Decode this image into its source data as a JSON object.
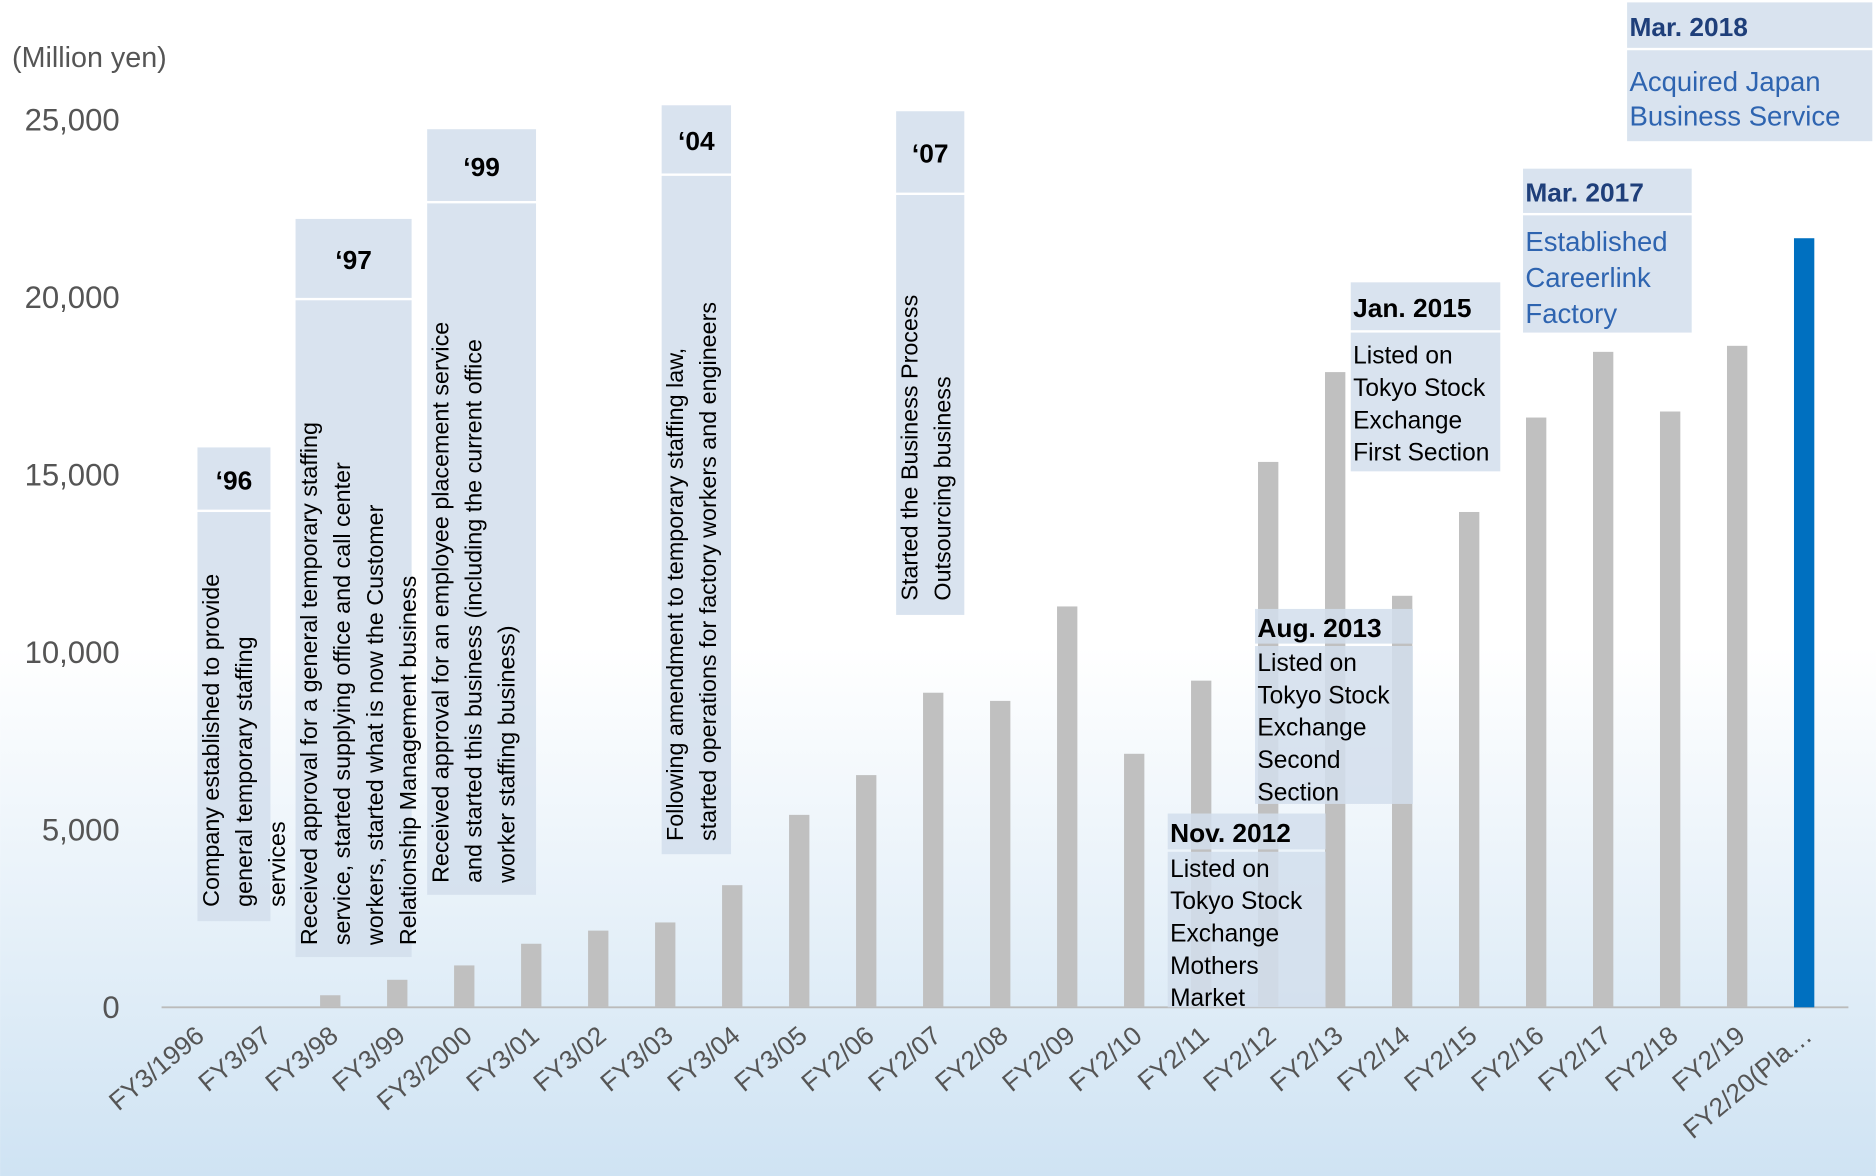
{
  "chart_data": {
    "type": "bar",
    "unit_label": "(Million yen)",
    "categories": [
      "FY3/1996",
      "FY3/97",
      "FY3/98",
      "FY3/99",
      "FY3/2000",
      "FY3/01",
      "FY3/02",
      "FY3/03",
      "FY3/04",
      "FY3/05",
      "FY2/06",
      "FY2/07",
      "FY2/08",
      "FY2/09",
      "FY2/10",
      "FY2/11",
      "FY2/12",
      "FY2/13",
      "FY2/14",
      "FY2/15",
      "FY2/16",
      "FY2/17",
      "FY2/18",
      "FY2/19",
      "FY2/20(Pla…"
    ],
    "values": [
      0,
      0,
      340,
      775,
      1180,
      1790,
      2160,
      2390,
      3440,
      5420,
      6540,
      8860,
      8630,
      11290,
      7140,
      9200,
      15360,
      17890,
      11590,
      13950,
      16610,
      18460,
      16780,
      18630,
      21660
    ],
    "colors": [
      "#c0c0c0",
      "#c0c0c0",
      "#c0c0c0",
      "#c0c0c0",
      "#c0c0c0",
      "#c0c0c0",
      "#c0c0c0",
      "#c0c0c0",
      "#c0c0c0",
      "#c0c0c0",
      "#c0c0c0",
      "#c0c0c0",
      "#c0c0c0",
      "#c0c0c0",
      "#c0c0c0",
      "#c0c0c0",
      "#c0c0c0",
      "#c0c0c0",
      "#c0c0c0",
      "#c0c0c0",
      "#c0c0c0",
      "#c0c0c0",
      "#c0c0c0",
      "#c0c0c0",
      "#0070c0"
    ],
    "ylim": [
      0,
      25000
    ],
    "yticks": [
      0,
      {
        "value": 5000,
        "label": "5,000"
      },
      {
        "value": 10000,
        "label": "10,000"
      },
      {
        "value": 15000,
        "label": "15,000"
      },
      {
        "value": 20000,
        "label": "20,000"
      },
      {
        "value": 25000,
        "label": "25,000"
      }
    ],
    "grid": false,
    "annotations": [
      {
        "label": "‘96",
        "text": [
          "Company established to provide",
          "general temporary staffing",
          "services"
        ]
      },
      {
        "label": "‘97",
        "text": [
          "Received approval for a general temporary staffing",
          "service, started supplying office and call center",
          "workers, started what is now the Customer",
          "Relationship Management business"
        ]
      },
      {
        "label": "‘99",
        "text": [
          "Received approval for an employee placement service",
          "and started this business (including the current office",
          "worker staffing business)"
        ]
      },
      {
        "label": "‘04",
        "text": [
          "Following amendment to temporary staffing law,",
          "started operations for factory workers and engineers"
        ]
      },
      {
        "label": "‘07",
        "text": [
          "Started the Business Process",
          "Outsourcing business"
        ]
      },
      {
        "label": "Nov. 2012",
        "text": [
          "Listed on",
          "Tokyo Stock",
          "Exchange",
          "Mothers",
          "Market"
        ]
      },
      {
        "label": "Aug. 2013",
        "text": [
          "Listed on",
          "Tokyo Stock",
          "Exchange",
          "Second",
          "Section"
        ]
      },
      {
        "label": "Jan. 2015",
        "text": [
          "Listed on",
          "Tokyo Stock",
          "Exchange",
          "First Section"
        ]
      },
      {
        "label": "Mar. 2017",
        "text": [
          "Established",
          "Careerlink",
          "Factory"
        ]
      },
      {
        "label": "Mar. 2018",
        "text": [
          "Acquired Japan",
          "Business Service"
        ]
      }
    ]
  }
}
